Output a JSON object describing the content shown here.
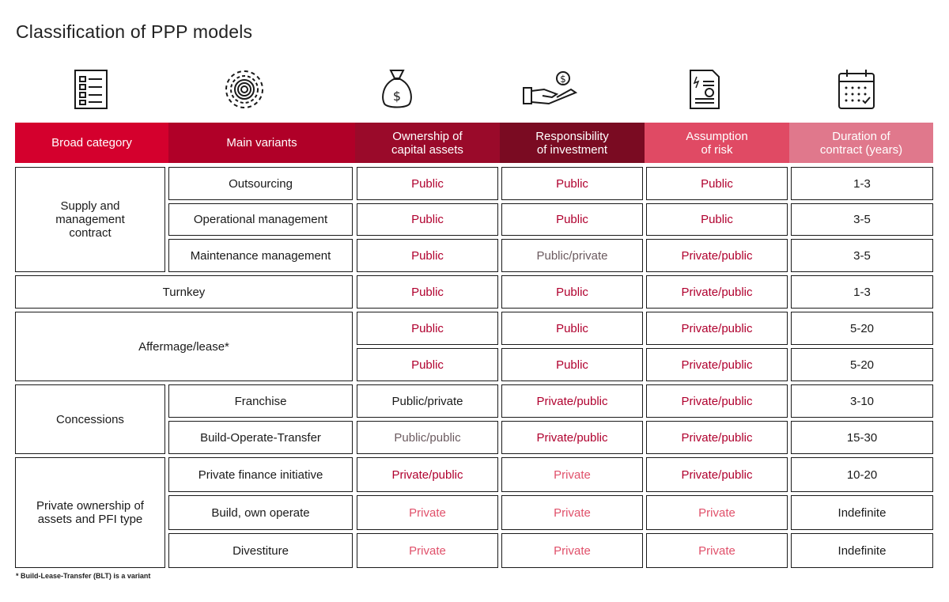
{
  "title": "Classification of PPP models",
  "colors": {
    "header_bg": [
      "#d4002d",
      "#b00028",
      "#9a0a2a",
      "#7a0b22",
      "#e04a64",
      "#e0788c"
    ],
    "text_red": "#b0002e",
    "text_pink": "#e0506a",
    "text_gray": "#6b5a5f"
  },
  "icons": [
    "checklist-icon",
    "gear-icon",
    "money-bag-icon",
    "hand-coin-icon",
    "invoice-document-icon",
    "calendar-icon"
  ],
  "headers": [
    "Broad category",
    "Main variants",
    "Ownership of\ncapital assets",
    "Responsibility\nof investment",
    "Assumption\nof risk",
    "Duration of\ncontract (years)"
  ],
  "categories": {
    "supply": "Supply and\nmanagement\ncontract",
    "turnkey": "Turnkey",
    "affermage": "Affermage/lease*",
    "concessions": "Concessions",
    "private": "Private ownership of\nassets and PFI type"
  },
  "rows": [
    {
      "variant": "Outsourcing",
      "ownership": "Public",
      "investment": "Public",
      "risk": "Public",
      "duration": "1-3"
    },
    {
      "variant": "Operational management",
      "ownership": "Public",
      "investment": "Public",
      "risk": "Public",
      "duration": "3-5"
    },
    {
      "variant": "Maintenance management",
      "ownership": "Public",
      "investment": "Public/private",
      "risk": "Private/public",
      "duration": "3-5"
    },
    {
      "variant": "",
      "ownership": "Public",
      "investment": "Public",
      "risk": "Private/public",
      "duration": "1-3"
    },
    {
      "variant": "",
      "ownership": "Public",
      "investment": "Public",
      "risk": "Private/public",
      "duration": "5-20"
    },
    {
      "variant": "",
      "ownership": "Public",
      "investment": "Public",
      "risk": "Private/public",
      "duration": "5-20"
    },
    {
      "variant": "Franchise",
      "ownership": "Public/private",
      "investment": "Private/public",
      "risk": "Private/public",
      "duration": "3-10"
    },
    {
      "variant": "Build-Operate-Transfer",
      "ownership": "Public/public",
      "investment": "Private/public",
      "risk": "Private/public",
      "duration": "15-30"
    },
    {
      "variant": "Private finance initiative",
      "ownership": "Private/public",
      "investment": "Private",
      "risk": "Private/public",
      "duration": "10-20"
    },
    {
      "variant": "Build, own operate",
      "ownership": "Private",
      "investment": "Private",
      "risk": "Private",
      "duration": "Indefinite"
    },
    {
      "variant": "Divestiture",
      "ownership": "Private",
      "investment": "Private",
      "risk": "Private",
      "duration": "Indefinite"
    }
  ],
  "footnote": "* Build-Lease-Transfer (BLT) is a variant"
}
